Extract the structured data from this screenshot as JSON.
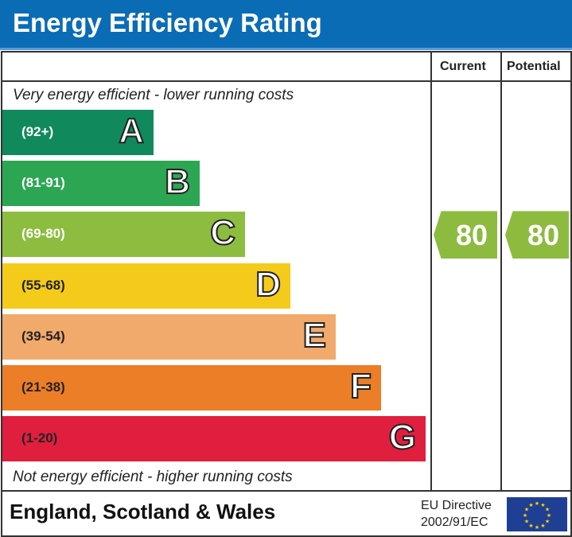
{
  "title": "Energy Efficiency Rating",
  "chart_data": {
    "type": "bar",
    "columns": [
      "Current",
      "Potential"
    ],
    "top_note": "Very energy efficient - lower running costs",
    "bottom_note": "Not energy efficient - higher running costs",
    "bands": [
      {
        "letter": "A",
        "range": "(92+)",
        "color": "#108a5c"
      },
      {
        "letter": "B",
        "range": "(81-91)",
        "color": "#2ca653"
      },
      {
        "letter": "C",
        "range": "(69-80)",
        "color": "#8dbd40"
      },
      {
        "letter": "D",
        "range": "(55-68)",
        "color": "#f5cb1b"
      },
      {
        "letter": "E",
        "range": "(39-54)",
        "color": "#f2a96c"
      },
      {
        "letter": "F",
        "range": "(21-38)",
        "color": "#ec7e27"
      },
      {
        "letter": "G",
        "range": "(1-20)",
        "color": "#e01f3e"
      }
    ],
    "current": {
      "value": "80",
      "band": "C",
      "color": "#8dbb40"
    },
    "potential": {
      "value": "80",
      "band": "C",
      "color": "#8dbb40"
    }
  },
  "footer": {
    "region": "England, Scotland & Wales",
    "directive_line1": "EU Directive",
    "directive_line2": "2002/91/EC"
  }
}
